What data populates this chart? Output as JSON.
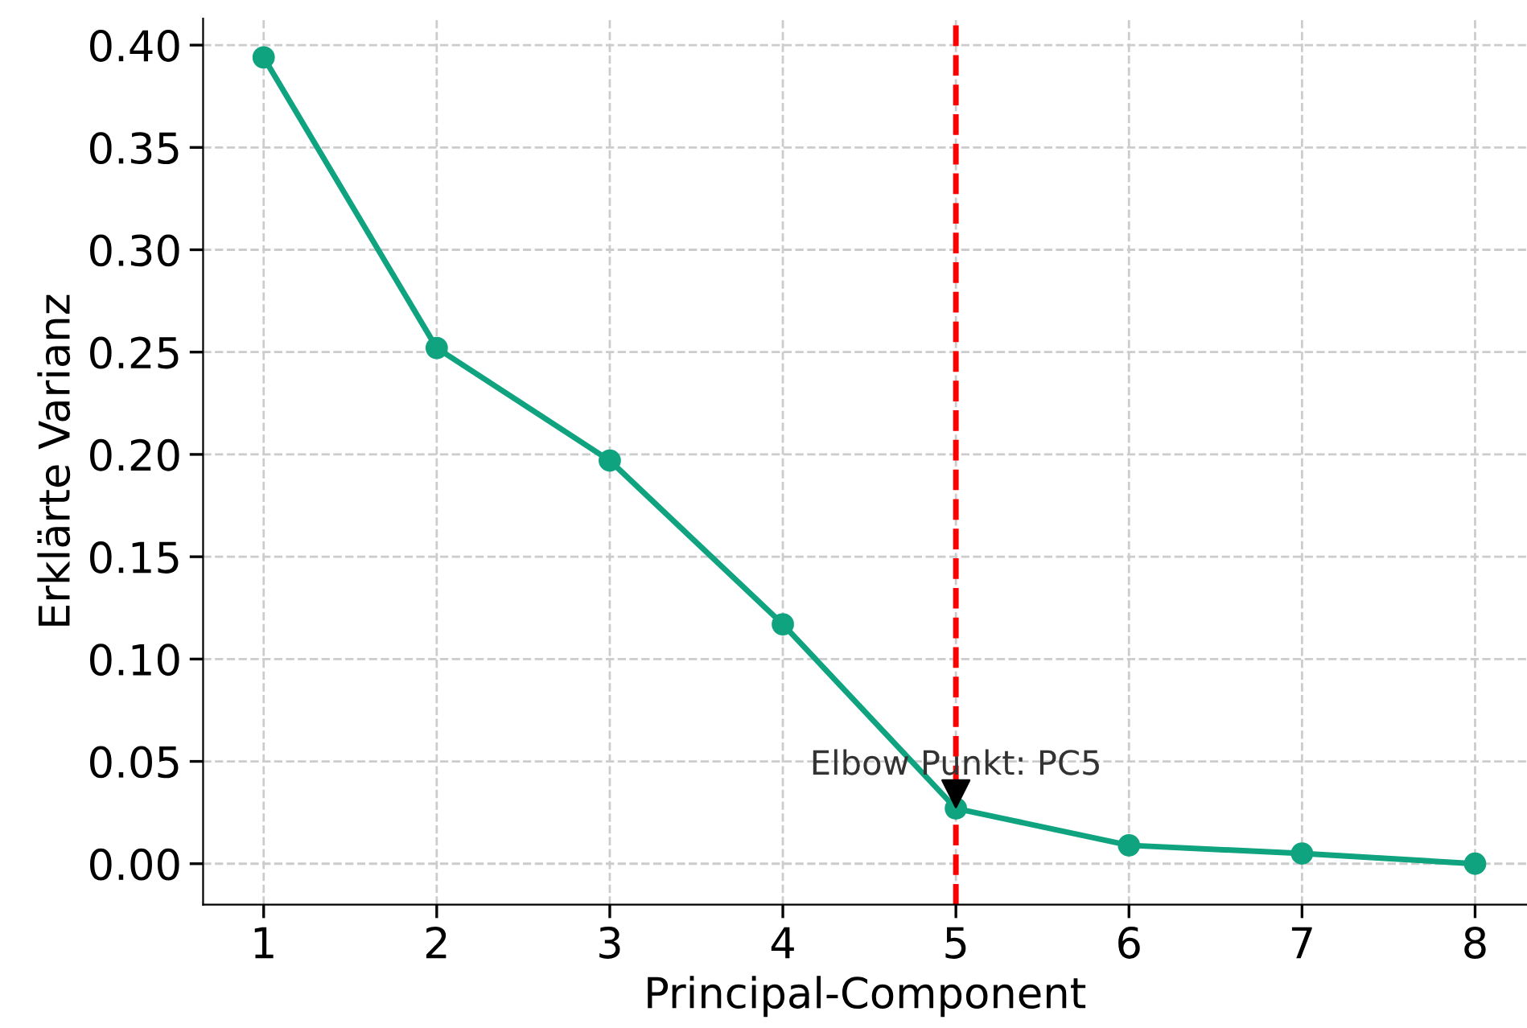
{
  "chart_data": {
    "type": "line",
    "xlabel": "Principal-Component",
    "ylabel": "Erklärte Varianz",
    "x": [
      1,
      2,
      3,
      4,
      5,
      6,
      7,
      8
    ],
    "series": [
      {
        "color": "#10a37f",
        "values": [
          0.394,
          0.252,
          0.197,
          0.117,
          0.027,
          0.009,
          0.005,
          0.0
        ]
      }
    ],
    "xlim": [
      0.65,
      8.3
    ],
    "ylim": [
      -0.02,
      0.413
    ],
    "xticks": [
      1,
      2,
      3,
      4,
      5,
      6,
      7,
      8
    ],
    "yticks": [
      {
        "value": 0,
        "label": "0.00"
      },
      {
        "value": 0.05,
        "label": "0.05"
      },
      {
        "value": 0.1,
        "label": "0.10"
      },
      {
        "value": 0.15,
        "label": "0.15"
      },
      {
        "value": 0.2,
        "label": "0.20"
      },
      {
        "value": 0.25,
        "label": "0.25"
      },
      {
        "value": 0.3,
        "label": "0.30"
      },
      {
        "value": 0.35,
        "label": "0.35"
      },
      {
        "value": 0.4,
        "label": "0.40"
      }
    ],
    "ref_lines": [
      {
        "axis": "x",
        "value": 5,
        "color": "#ff0000",
        "line_style": "dashed"
      }
    ],
    "annotations": [
      {
        "text": "Elbow Punkt: PC5",
        "x": 5,
        "y": 0.027
      }
    ],
    "grid": true,
    "marker": "circle",
    "line_style": "solid"
  }
}
